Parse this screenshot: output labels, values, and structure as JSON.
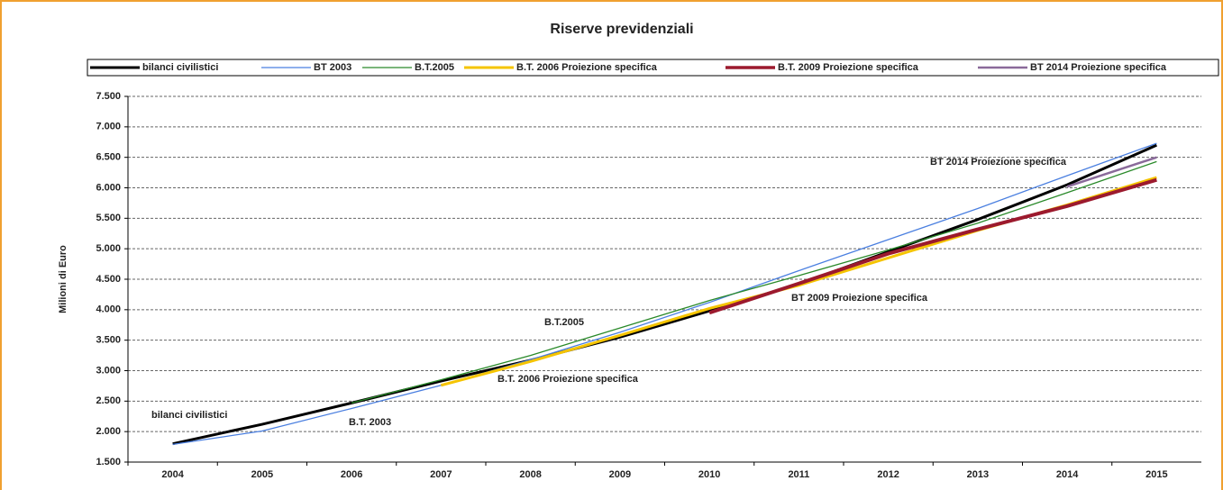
{
  "chart_data": {
    "type": "line",
    "title": "Riserve previdenziali",
    "ylabel": "Milioni di Euro",
    "categories": [
      "2004",
      "2005",
      "2006",
      "2007",
      "2008",
      "2009",
      "2010",
      "2011",
      "2012",
      "2013",
      "2014",
      "2015"
    ],
    "ylim": [
      1500,
      7500
    ],
    "yticks": [
      {
        "value": 1500,
        "label": "1.500"
      },
      {
        "value": 2000,
        "label": "2.000"
      },
      {
        "value": 2500,
        "label": "2.500"
      },
      {
        "value": 3000,
        "label": "3.000"
      },
      {
        "value": 3500,
        "label": "3.500"
      },
      {
        "value": 4000,
        "label": "4.000"
      },
      {
        "value": 4500,
        "label": "4.500"
      },
      {
        "value": 5000,
        "label": "5.000"
      },
      {
        "value": 5500,
        "label": "5.500"
      },
      {
        "value": 6000,
        "label": "6.000"
      },
      {
        "value": 6500,
        "label": "6.500"
      },
      {
        "value": 7000,
        "label": "7.000"
      },
      {
        "value": 7500,
        "label": "7.500"
      }
    ],
    "grid": true,
    "legend": "top",
    "series": [
      {
        "name": "bilanci civilistici",
        "color": "#000000",
        "width": 3,
        "values": [
          1800,
          2120,
          2470,
          2830,
          3170,
          3550,
          3980,
          4420,
          4950,
          5480,
          6050,
          6700
        ]
      },
      {
        "name": "BT 2003",
        "color": "#4a7fe0",
        "width": 1.3,
        "values": [
          1790,
          2010,
          2380,
          2760,
          3180,
          3630,
          4120,
          4640,
          5150,
          5660,
          6200,
          6730
        ]
      },
      {
        "name": "B.T.2005",
        "color": "#2a8a2a",
        "width": 1.3,
        "values": [
          null,
          null,
          2470,
          2850,
          3250,
          3700,
          4150,
          4560,
          4980,
          5420,
          5920,
          6430
        ]
      },
      {
        "name": "B.T. 2006 Proiezione specifica",
        "color": "#f5c400",
        "width": 3,
        "values": [
          null,
          null,
          null,
          2760,
          3150,
          3580,
          4020,
          4400,
          4850,
          5300,
          5720,
          6170
        ]
      },
      {
        "name": "B.T. 2009 Proiezione specifica",
        "color": "#9c1a2e",
        "width": 4,
        "values": [
          null,
          null,
          null,
          null,
          null,
          null,
          3950,
          4430,
          4920,
          5320,
          5700,
          6130
        ]
      },
      {
        "name": "BT 2014 Proiezione specifica",
        "color": "#8a6a9a",
        "width": 2.5,
        "values": [
          null,
          null,
          null,
          null,
          null,
          null,
          null,
          null,
          null,
          null,
          6020,
          6500
        ]
      }
    ],
    "annotations": [
      "bilanci civilistici",
      "B.T. 2003",
      "B.T.2005",
      "B.T. 2006 Proiezione specifica",
      "BT 2009 Proiezione specifica",
      "BT 2014 Proiezione specifica"
    ]
  }
}
